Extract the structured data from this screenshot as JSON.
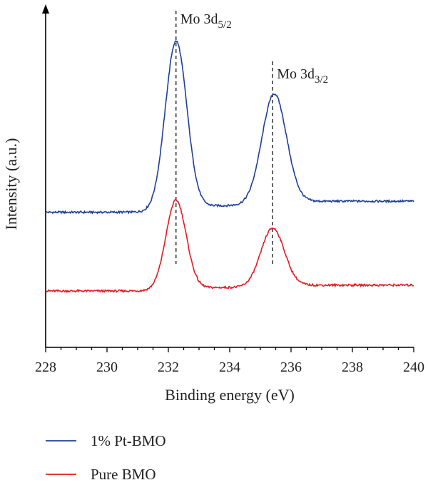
{
  "chart_data": {
    "type": "line",
    "xlabel": "Binding energy (eV)",
    "ylabel": "Intensity (a.u.)",
    "xlim": [
      228,
      240
    ],
    "x_ticks": [
      228,
      230,
      232,
      234,
      236,
      238,
      240
    ],
    "y_tick_labels": "none",
    "grid": false,
    "legend_position": "bottom",
    "series": [
      {
        "name": "1% Pt-BMO",
        "color": "#1f3f99",
        "baseline": 0.23,
        "peaks": [
          {
            "center": 232.25,
            "height": 0.49,
            "width": 0.35
          },
          {
            "center": 235.45,
            "height": 0.32,
            "width": 0.4
          }
        ]
      },
      {
        "name": "Pure BMO",
        "color": "#e31b23",
        "baseline": 0.0,
        "peaks": [
          {
            "center": 232.25,
            "height": 0.26,
            "width": 0.33
          },
          {
            "center": 235.4,
            "height": 0.17,
            "width": 0.38
          }
        ]
      }
    ],
    "annotations": [
      {
        "main": "Mo 3d",
        "sub": "5/2",
        "x": 232.25
      },
      {
        "main": "Mo 3d",
        "sub": "3/2",
        "x": 235.4
      }
    ]
  }
}
